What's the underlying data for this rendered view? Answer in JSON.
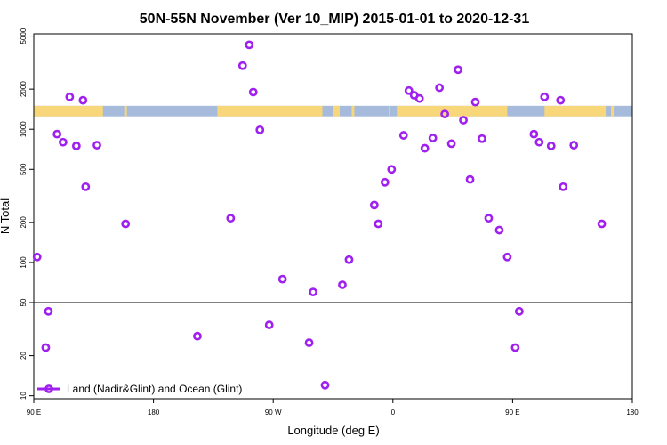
{
  "chart_data": {
    "type": "scatter",
    "title": "50N-55N November (Ver 10_MIP)   2015-01-01 to 2020-12-31",
    "xlabel": "Longitude (deg E)",
    "ylabel": "N Total",
    "y_scale": "log",
    "xlim": [
      90,
      540
    ],
    "ylim": [
      9.5,
      5200
    ],
    "x_ticks": [
      {
        "value": 90,
        "label": "90 E"
      },
      {
        "value": 180,
        "label": "180"
      },
      {
        "value": 270,
        "label": "90 W"
      },
      {
        "value": 360,
        "label": "0"
      },
      {
        "value": 450,
        "label": "90 E"
      },
      {
        "value": 540,
        "label": "180"
      }
    ],
    "y_ticks": [
      {
        "value": 10,
        "label": "10"
      },
      {
        "value": 20,
        "label": "20"
      },
      {
        "value": 50,
        "label": "50"
      },
      {
        "value": 100,
        "label": "100"
      },
      {
        "value": 200,
        "label": "200"
      },
      {
        "value": 500,
        "label": "500"
      },
      {
        "value": 1000,
        "label": "1000"
      },
      {
        "value": 2000,
        "label": "2000"
      },
      {
        "value": 5000,
        "label": "5000"
      }
    ],
    "reference_line_y": 50,
    "land_strip": {
      "y_range": [
        1250,
        1500
      ],
      "ocean_color": "#a6bbdb",
      "land_color": "#f8d77a",
      "land_segments": [
        [
          90,
          142
        ],
        [
          158,
          160
        ],
        [
          228,
          306
        ],
        [
          306,
          307
        ],
        [
          315,
          320
        ],
        [
          329,
          331
        ],
        [
          357,
          358
        ],
        [
          363,
          438
        ],
        [
          438,
          446
        ],
        [
          474,
          520
        ],
        [
          524,
          526
        ]
      ]
    },
    "series": [
      {
        "name": "Land (Nadir&Glint) and Ocean (Glint)",
        "color": "#a020f0",
        "marker": "open-circle",
        "points": [
          [
            92.5,
            110
          ],
          [
            99,
            23
          ],
          [
            101,
            43
          ],
          [
            107.5,
            920
          ],
          [
            112,
            800
          ],
          [
            117,
            1750
          ],
          [
            122,
            750
          ],
          [
            127,
            1650
          ],
          [
            129,
            370
          ],
          [
            137.5,
            760
          ],
          [
            159,
            195
          ],
          [
            213,
            28
          ],
          [
            238,
            215
          ],
          [
            247,
            3000
          ],
          [
            252,
            4300
          ],
          [
            255,
            1900
          ],
          [
            260,
            990
          ],
          [
            267,
            34
          ],
          [
            277,
            75
          ],
          [
            297,
            25
          ],
          [
            300,
            60
          ],
          [
            309,
            12
          ],
          [
            322,
            68
          ],
          [
            327,
            105
          ],
          [
            346,
            270
          ],
          [
            349,
            195
          ],
          [
            354,
            400
          ],
          [
            359,
            500
          ],
          [
            368,
            900
          ],
          [
            372,
            1950
          ],
          [
            376,
            1800
          ],
          [
            380,
            1700
          ],
          [
            384,
            720
          ],
          [
            390,
            860
          ],
          [
            395,
            2050
          ],
          [
            399,
            1300
          ],
          [
            404,
            780
          ],
          [
            409,
            2800
          ],
          [
            413,
            1170
          ],
          [
            418,
            420
          ],
          [
            422,
            1600
          ],
          [
            427,
            850
          ],
          [
            432,
            215
          ],
          [
            440,
            175
          ],
          [
            446,
            110
          ],
          [
            452,
            23
          ],
          [
            455,
            43
          ],
          [
            466,
            920
          ],
          [
            470,
            800
          ],
          [
            474,
            1750
          ],
          [
            479,
            750
          ],
          [
            486,
            1650
          ],
          [
            488,
            370
          ],
          [
            496,
            760
          ],
          [
            517,
            195
          ]
        ]
      }
    ]
  }
}
